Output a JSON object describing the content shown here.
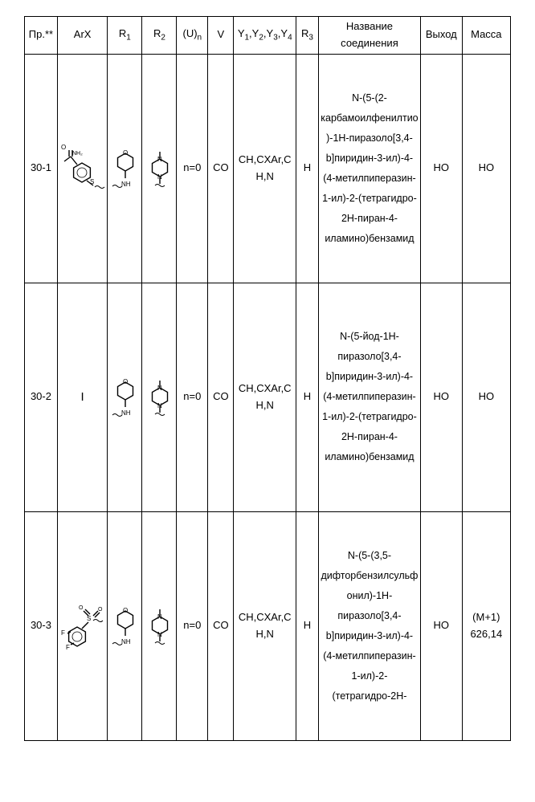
{
  "headers": {
    "pr": "Пр.**",
    "arx": "ArX",
    "r1": "R₁",
    "r2": "R₂",
    "un": "(U)ₙ",
    "v": "V",
    "y": "Y₁,Y₂,Y₃,Y₄",
    "r3": "R₃",
    "name": "Название соединения",
    "out": "Выход",
    "mass": "Масса"
  },
  "rows": [
    {
      "pr": "30-1",
      "arx_type": "benzamide-S",
      "r1_type": "THP-NH",
      "r2_type": "N-Me-piperazine",
      "un": "n=0",
      "v": "CO",
      "y": "CH,CXAr,CH,N",
      "r3": "H",
      "name": "N-(5-(2-карбамоилфенилтио)-1H-пиразоло[3,4-b]пиридин-3-ил)-4-(4-метилпиперазин-1-ил)-2-(тетрагидро-2H-пиран-4-иламино)бензамид",
      "out": "НО",
      "mass": "НО"
    },
    {
      "pr": "30-2",
      "arx_type": "I",
      "r1_type": "THP-NH",
      "r2_type": "N-Me-piperazine",
      "un": "n=0",
      "v": "CO",
      "y": "CH,CXAr,CH,N",
      "r3": "H",
      "name": "N-(5-йод-1H-пиразоло[3,4-b]пиридин-3-ил)-4-(4-метилпиперазин-1-ил)-2-(тетрагидро-2H-пиран-4-иламино)бензамид",
      "out": "НО",
      "mass": "НО"
    },
    {
      "pr": "30-3",
      "arx_type": "difluoro-sulfonyl",
      "r1_type": "THP-NH",
      "r2_type": "N-Me-piperazine",
      "un": "n=0",
      "v": "CO",
      "y": "CH,CXAr,CH,N",
      "r3": "H",
      "name": "N-(5-(3,5-дифторбензилсульфонил)-1H-пиразоло[3,4-b]пиридин-3-ил)-4-(4-метилпиперазин-1-ил)-2-",
      "name_tail": "(тетрагидро-2H-",
      "out": "НО",
      "mass": "(M+1) 626,14"
    }
  ],
  "colors": {
    "stroke": "#000000",
    "bg": "#ffffff"
  }
}
